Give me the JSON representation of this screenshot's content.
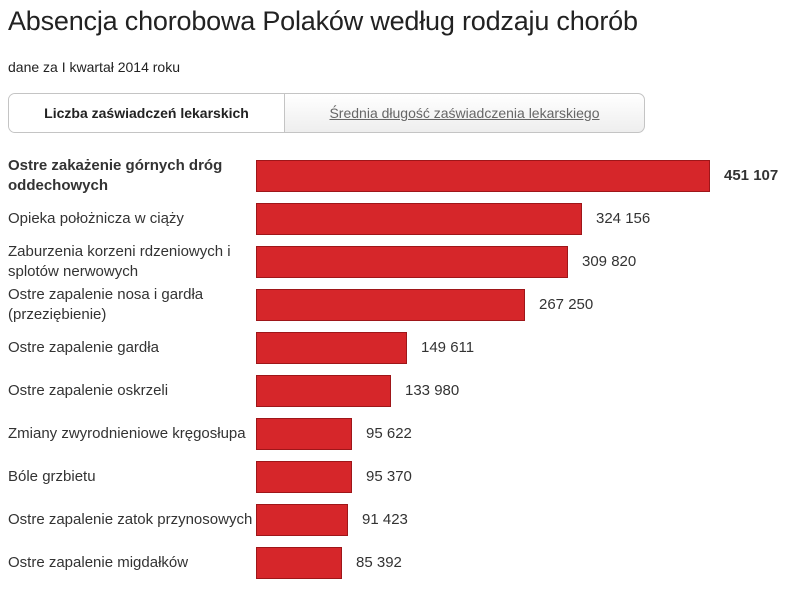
{
  "header": {
    "title": "Absencja chorobowa Polaków według rodzaju chorób",
    "subtitle": "dane za I kwartał 2014 roku"
  },
  "tabs": [
    {
      "label": "Liczba zaświadczeń lekarskich",
      "active": true
    },
    {
      "label": "Średnia długość zaświadczenia lekarskiego",
      "active": false
    }
  ],
  "colors": {
    "bar": "#d6262a",
    "bar_border": "#9e1619"
  },
  "chart_data": {
    "type": "bar",
    "orientation": "horizontal",
    "title": "Absencja chorobowa Polaków według rodzaju chorób",
    "subtitle": "dane za I kwartał 2014 roku",
    "categories": [
      "Ostre zakażenie górnych dróg oddechowych",
      "Opieka położnicza w ciąży",
      "Zaburzenia korzeni rdzeniowych i splotów nerwowych",
      "Ostre zapalenie nosa i gardła (przeziębienie)",
      "Ostre zapalenie gardła",
      "Ostre zapalenie oskrzeli",
      "Zmiany zwyrodnieniowe kręgosłupa",
      "Bóle grzbietu",
      "Ostre zapalenie zatok przynosowych",
      "Ostre zapalenie migdałków"
    ],
    "values": [
      451107,
      324156,
      309820,
      267250,
      149611,
      133980,
      95622,
      95370,
      91423,
      85392
    ],
    "value_labels": [
      "451 107",
      "324 156",
      "309 820",
      "267 250",
      "149 611",
      "133 980",
      "95 622",
      "95 370",
      "91 423",
      "85 392"
    ],
    "xlim": [
      0,
      451107
    ],
    "grid": false,
    "legend": "none"
  }
}
